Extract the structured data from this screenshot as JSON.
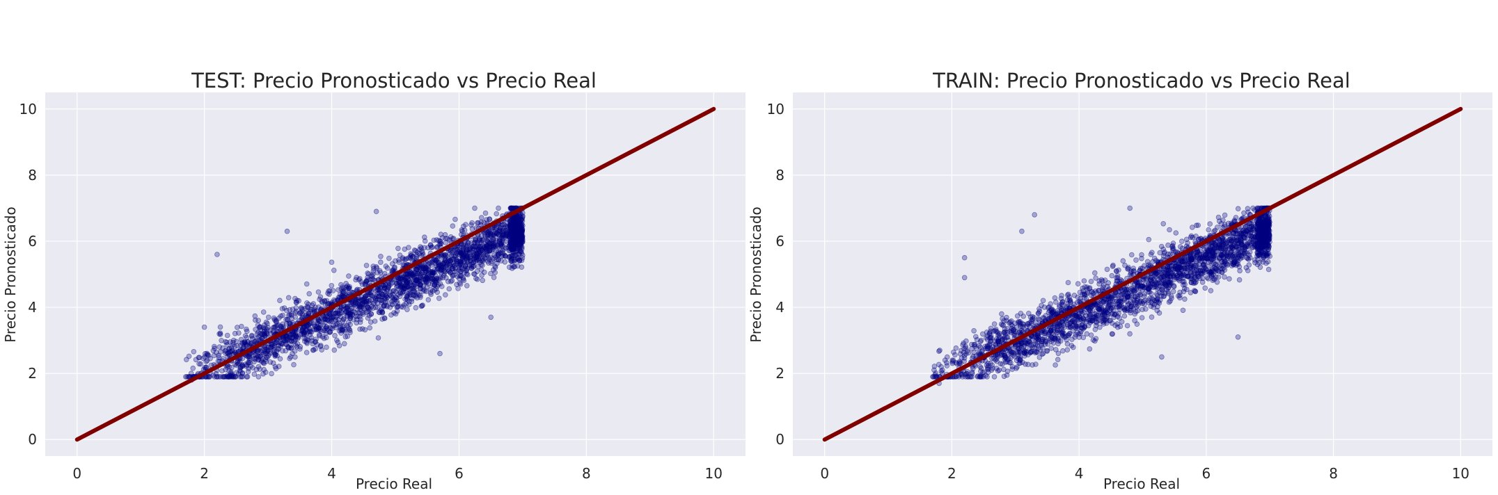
{
  "chart_data": [
    {
      "type": "scatter",
      "title": "TEST: Precio Pronosticado vs Precio Real",
      "xlabel": "Precio Real",
      "ylabel": "Precio Pronosticado",
      "xlim": [
        -0.5,
        10.5
      ],
      "ylim": [
        -0.5,
        10.5
      ],
      "xticks": [
        0,
        2,
        4,
        6,
        8,
        10
      ],
      "yticks": [
        0,
        2,
        4,
        6,
        8,
        10
      ],
      "grid": true,
      "background": "#eaeaf2",
      "series": [
        {
          "kind": "points",
          "color": "#000080",
          "opacity": 0.3,
          "x_range": [
            1.7,
            7.0
          ],
          "y_range": [
            1.7,
            7.0
          ],
          "sample_points": [
            {
              "x": 2.2,
              "y": 5.6
            },
            {
              "x": 3.3,
              "y": 6.3
            },
            {
              "x": 5.7,
              "y": 2.6
            },
            {
              "x": 4.7,
              "y": 6.9
            },
            {
              "x": 6.5,
              "y": 3.7
            },
            {
              "x": 1.8,
              "y": 1.8
            },
            {
              "x": 6.9,
              "y": 6.9
            },
            {
              "x": 4.2,
              "y": 2.9
            },
            {
              "x": 2.0,
              "y": 3.4
            }
          ]
        },
        {
          "kind": "line",
          "color": "#800000",
          "points": [
            {
              "x": 0,
              "y": 0
            },
            {
              "x": 10,
              "y": 10
            }
          ]
        }
      ]
    },
    {
      "type": "scatter",
      "title": "TRAIN: Precio Pronosticado vs Precio Real",
      "xlabel": "Precio Real",
      "ylabel": "Precio Pronosticado",
      "xlim": [
        -0.5,
        10.5
      ],
      "ylim": [
        -0.5,
        10.5
      ],
      "xticks": [
        0,
        2,
        4,
        6,
        8,
        10
      ],
      "yticks": [
        0,
        2,
        4,
        6,
        8,
        10
      ],
      "grid": true,
      "background": "#eaeaf2",
      "series": [
        {
          "kind": "points",
          "color": "#000080",
          "opacity": 0.3,
          "x_range": [
            1.7,
            7.0
          ],
          "y_range": [
            1.7,
            7.0
          ],
          "sample_points": [
            {
              "x": 2.2,
              "y": 5.5
            },
            {
              "x": 3.1,
              "y": 6.3
            },
            {
              "x": 3.3,
              "y": 6.8
            },
            {
              "x": 5.3,
              "y": 2.5
            },
            {
              "x": 4.8,
              "y": 7.0
            },
            {
              "x": 6.5,
              "y": 3.1
            },
            {
              "x": 1.8,
              "y": 1.7
            },
            {
              "x": 6.9,
              "y": 7.0
            },
            {
              "x": 2.2,
              "y": 4.9
            }
          ]
        },
        {
          "kind": "line",
          "color": "#800000",
          "points": [
            {
              "x": 0,
              "y": 0
            },
            {
              "x": 10,
              "y": 10
            }
          ]
        }
      ]
    }
  ]
}
